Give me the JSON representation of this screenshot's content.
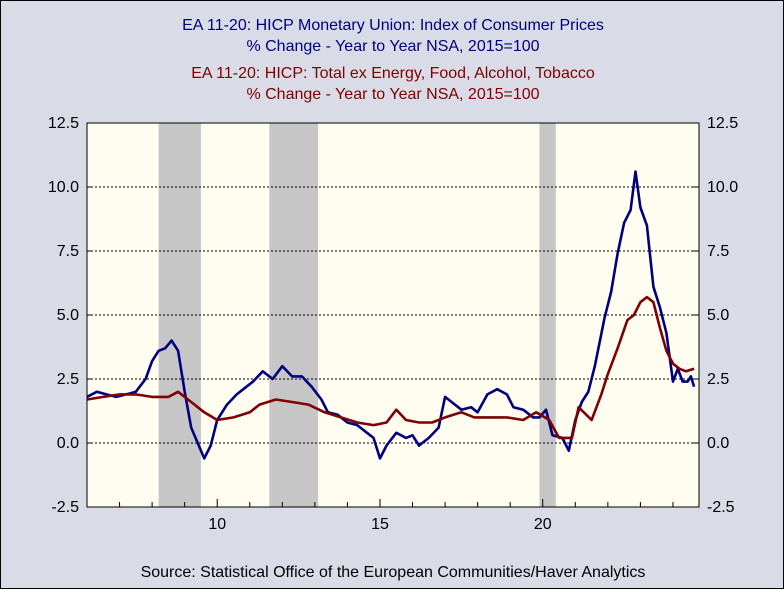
{
  "titles": [
    {
      "text": "EA 11-20: HICP Monetary Union: Index of Consumer Prices",
      "color": "#00007f"
    },
    {
      "text": "% Change - Year to Year    NSA, 2015=100",
      "color": "#00007f"
    },
    {
      "text": "EA 11-20: HICP: Total ex Energy, Food, Alcohol, Tobacco",
      "color": "#7f0000"
    },
    {
      "text": "% Change - Year to Year    NSA, 2015=100",
      "color": "#7f0000"
    }
  ],
  "source": "Source:  Statistical Office of the European Communities/Haver Analytics",
  "chart_data": {
    "type": "line",
    "xlim": [
      2006.0,
      2024.8
    ],
    "ylim": [
      -2.5,
      12.5
    ],
    "y_ticks": [
      "-2.5",
      "0.0",
      "2.5",
      "5.0",
      "7.5",
      "10.0",
      "12.5"
    ],
    "y_tick_values": [
      -2.5,
      0,
      2.5,
      5,
      7.5,
      10,
      12.5
    ],
    "x_ticks": [
      "10",
      "15",
      "20"
    ],
    "x_tick_values": [
      2010,
      2015,
      2020
    ],
    "grid": "horizontal dashed",
    "background": "#fffcf0",
    "recessions": [
      [
        2008.2,
        2009.5
      ],
      [
        2011.6,
        2013.1
      ],
      [
        2019.9,
        2020.4
      ]
    ],
    "series": [
      {
        "color": "#00007f",
        "points": [
          [
            2006.0,
            1.8
          ],
          [
            2006.3,
            2.0
          ],
          [
            2006.6,
            1.9
          ],
          [
            2006.9,
            1.8
          ],
          [
            2007.2,
            1.9
          ],
          [
            2007.5,
            2.0
          ],
          [
            2007.8,
            2.5
          ],
          [
            2008.0,
            3.2
          ],
          [
            2008.2,
            3.6
          ],
          [
            2008.4,
            3.7
          ],
          [
            2008.6,
            4.0
          ],
          [
            2008.8,
            3.6
          ],
          [
            2009.0,
            2.0
          ],
          [
            2009.2,
            0.6
          ],
          [
            2009.4,
            0.0
          ],
          [
            2009.6,
            -0.6
          ],
          [
            2009.8,
            -0.1
          ],
          [
            2010.0,
            0.9
          ],
          [
            2010.3,
            1.5
          ],
          [
            2010.6,
            1.9
          ],
          [
            2010.9,
            2.2
          ],
          [
            2011.1,
            2.4
          ],
          [
            2011.4,
            2.8
          ],
          [
            2011.7,
            2.5
          ],
          [
            2012.0,
            3.0
          ],
          [
            2012.3,
            2.6
          ],
          [
            2012.6,
            2.6
          ],
          [
            2012.9,
            2.2
          ],
          [
            2013.2,
            1.7
          ],
          [
            2013.4,
            1.2
          ],
          [
            2013.7,
            1.1
          ],
          [
            2014.0,
            0.8
          ],
          [
            2014.3,
            0.7
          ],
          [
            2014.6,
            0.4
          ],
          [
            2014.8,
            0.2
          ],
          [
            2015.0,
            -0.6
          ],
          [
            2015.2,
            -0.1
          ],
          [
            2015.5,
            0.4
          ],
          [
            2015.8,
            0.2
          ],
          [
            2016.0,
            0.3
          ],
          [
            2016.2,
            -0.1
          ],
          [
            2016.5,
            0.2
          ],
          [
            2016.8,
            0.6
          ],
          [
            2017.0,
            1.8
          ],
          [
            2017.2,
            1.6
          ],
          [
            2017.5,
            1.3
          ],
          [
            2017.8,
            1.4
          ],
          [
            2018.0,
            1.2
          ],
          [
            2018.3,
            1.9
          ],
          [
            2018.6,
            2.1
          ],
          [
            2018.9,
            1.9
          ],
          [
            2019.1,
            1.4
          ],
          [
            2019.4,
            1.3
          ],
          [
            2019.7,
            1.0
          ],
          [
            2019.9,
            1.0
          ],
          [
            2020.1,
            1.3
          ],
          [
            2020.3,
            0.3
          ],
          [
            2020.6,
            0.2
          ],
          [
            2020.8,
            -0.3
          ],
          [
            2021.0,
            0.9
          ],
          [
            2021.2,
            1.6
          ],
          [
            2021.4,
            2.0
          ],
          [
            2021.6,
            3.0
          ],
          [
            2021.9,
            4.9
          ],
          [
            2022.1,
            5.9
          ],
          [
            2022.3,
            7.4
          ],
          [
            2022.5,
            8.6
          ],
          [
            2022.7,
            9.1
          ],
          [
            2022.85,
            10.6
          ],
          [
            2023.0,
            9.2
          ],
          [
            2023.2,
            8.5
          ],
          [
            2023.4,
            6.1
          ],
          [
            2023.6,
            5.3
          ],
          [
            2023.8,
            4.3
          ],
          [
            2024.0,
            2.4
          ],
          [
            2024.15,
            2.9
          ],
          [
            2024.3,
            2.4
          ],
          [
            2024.45,
            2.4
          ],
          [
            2024.55,
            2.6
          ],
          [
            2024.65,
            2.2
          ]
        ]
      },
      {
        "color": "#7f0000",
        "points": [
          [
            2006.0,
            1.7
          ],
          [
            2006.5,
            1.8
          ],
          [
            2007.0,
            1.9
          ],
          [
            2007.5,
            1.9
          ],
          [
            2008.0,
            1.8
          ],
          [
            2008.5,
            1.8
          ],
          [
            2008.8,
            2.0
          ],
          [
            2009.2,
            1.6
          ],
          [
            2009.6,
            1.2
          ],
          [
            2010.0,
            0.9
          ],
          [
            2010.5,
            1.0
          ],
          [
            2011.0,
            1.2
          ],
          [
            2011.3,
            1.5
          ],
          [
            2011.8,
            1.7
          ],
          [
            2012.3,
            1.6
          ],
          [
            2012.8,
            1.5
          ],
          [
            2013.3,
            1.2
          ],
          [
            2013.8,
            1.0
          ],
          [
            2014.3,
            0.8
          ],
          [
            2014.8,
            0.7
          ],
          [
            2015.2,
            0.8
          ],
          [
            2015.5,
            1.3
          ],
          [
            2015.8,
            0.9
          ],
          [
            2016.2,
            0.8
          ],
          [
            2016.6,
            0.8
          ],
          [
            2017.0,
            1.0
          ],
          [
            2017.5,
            1.2
          ],
          [
            2017.9,
            1.0
          ],
          [
            2018.4,
            1.0
          ],
          [
            2018.9,
            1.0
          ],
          [
            2019.4,
            0.9
          ],
          [
            2019.8,
            1.2
          ],
          [
            2020.2,
            0.9
          ],
          [
            2020.5,
            0.2
          ],
          [
            2020.9,
            0.2
          ],
          [
            2021.1,
            1.4
          ],
          [
            2021.5,
            0.9
          ],
          [
            2021.8,
            1.9
          ],
          [
            2022.0,
            2.7
          ],
          [
            2022.3,
            3.7
          ],
          [
            2022.6,
            4.8
          ],
          [
            2022.8,
            5.0
          ],
          [
            2023.0,
            5.5
          ],
          [
            2023.2,
            5.7
          ],
          [
            2023.4,
            5.5
          ],
          [
            2023.6,
            4.5
          ],
          [
            2023.8,
            3.6
          ],
          [
            2024.0,
            3.1
          ],
          [
            2024.2,
            2.9
          ],
          [
            2024.4,
            2.8
          ],
          [
            2024.65,
            2.9
          ]
        ]
      }
    ]
  }
}
